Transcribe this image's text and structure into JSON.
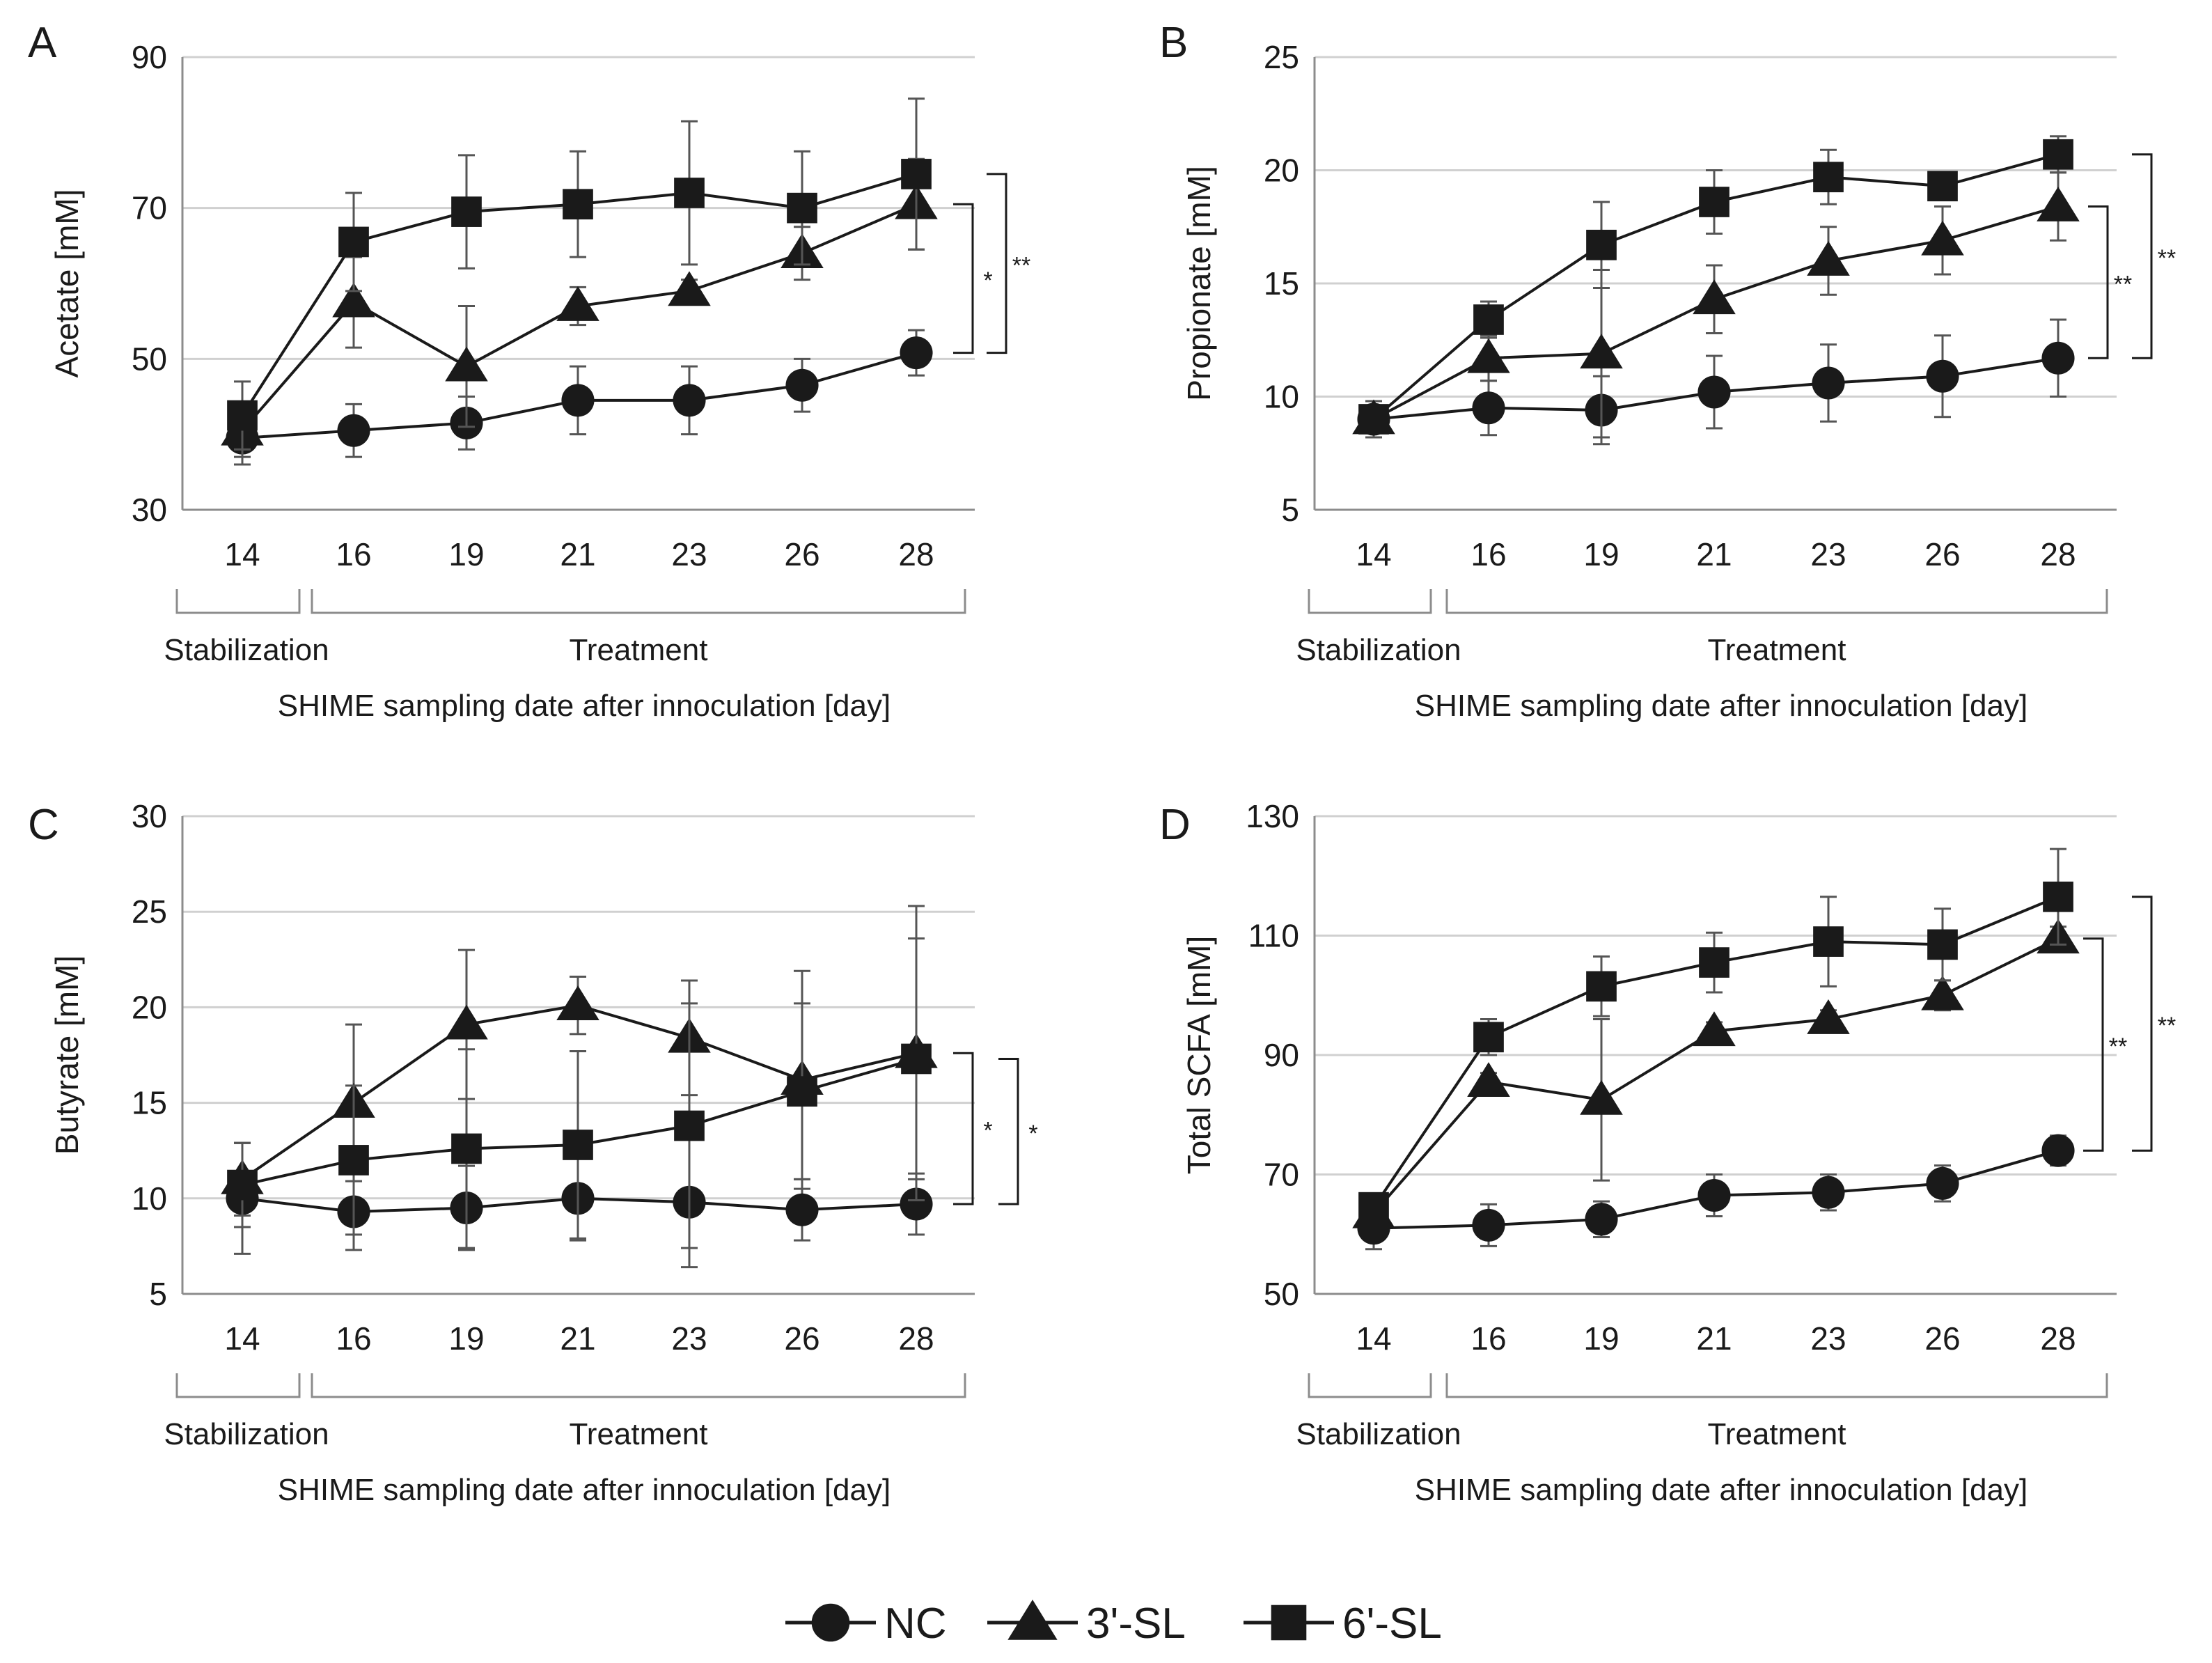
{
  "legend": {
    "colors": {
      "line": "#1a1a1a",
      "grid": "#d0d0d0",
      "axis": "#8c8c8c",
      "err": "#555555"
    },
    "items": [
      {
        "label": "NC",
        "marker": "circle"
      },
      {
        "label": "3'-SL",
        "marker": "triangle"
      },
      {
        "label": "6'-SL",
        "marker": "square"
      }
    ]
  },
  "chart_data": [
    {
      "panel": "A",
      "type": "line",
      "ylabel": "Acetate [mM]",
      "xlabel": "SHIME sampling date after innoculation [day]",
      "groups": [
        {
          "label": "Stabilization",
          "span": [
            0,
            0
          ]
        },
        {
          "label": "Treatment",
          "span": [
            1,
            6
          ]
        }
      ],
      "categories": [
        "14",
        "16",
        "19",
        "21",
        "23",
        "26",
        "28"
      ],
      "ylim": [
        30,
        90
      ],
      "yticks": [
        30,
        50,
        70,
        90
      ],
      "grid": true,
      "series": [
        {
          "name": "NC",
          "marker": "circle",
          "values": [
            39.5,
            40.5,
            41.5,
            44.5,
            44.5,
            46.5,
            50.8
          ],
          "err": [
            3.5,
            3.5,
            3.5,
            4.5,
            4.5,
            3.5,
            3
          ]
        },
        {
          "name": "3'-SL",
          "marker": "triangle",
          "values": [
            40.5,
            57.5,
            49,
            57,
            59,
            64,
            70.5
          ],
          "err": [
            3.5,
            6,
            8,
            2.5,
            1.5,
            3.5,
            6
          ]
        },
        {
          "name": "6'-SL",
          "marker": "square",
          "values": [
            42.5,
            65.5,
            69.5,
            70.5,
            72,
            70,
            74.5
          ],
          "err": [
            4.5,
            6.5,
            7.5,
            7,
            9.5,
            7.5,
            10
          ]
        }
      ],
      "significance": [
        {
          "label": "*",
          "from": 50.8,
          "to": 70.5
        },
        {
          "label": "**",
          "from": 50.8,
          "to": 74.5
        }
      ]
    },
    {
      "panel": "B",
      "type": "line",
      "ylabel": "Propionate [mM]",
      "xlabel": "SHIME sampling date after innoculation [day]",
      "groups": [
        {
          "label": "Stabilization",
          "span": [
            0,
            0
          ]
        },
        {
          "label": "Treatment",
          "span": [
            1,
            6
          ]
        }
      ],
      "categories": [
        "14",
        "16",
        "19",
        "21",
        "23",
        "26",
        "28"
      ],
      "ylim": [
        5,
        25
      ],
      "yticks": [
        5,
        10,
        15,
        20,
        25
      ],
      "grid": true,
      "series": [
        {
          "name": "NC",
          "marker": "circle",
          "values": [
            9,
            9.5,
            9.4,
            10.2,
            10.6,
            10.9,
            11.7
          ],
          "err": [
            0.8,
            1.2,
            1.5,
            1.6,
            1.7,
            1.8,
            1.7
          ]
        },
        {
          "name": "3'-SL",
          "marker": "triangle",
          "values": [
            9,
            11.7,
            11.9,
            14.3,
            16,
            16.9,
            18.4
          ],
          "err": [
            0.5,
            1,
            3.7,
            1.5,
            1.5,
            1.5,
            1.5
          ]
        },
        {
          "name": "6'-SL",
          "marker": "square",
          "values": [
            9,
            13.4,
            16.7,
            18.6,
            19.7,
            19.3,
            20.7
          ],
          "err": [
            0.5,
            0.8,
            1.9,
            1.4,
            1.2,
            0.6,
            0.8
          ]
        }
      ],
      "significance": [
        {
          "label": "**",
          "from": 11.7,
          "to": 18.4
        },
        {
          "label": "**",
          "from": 11.7,
          "to": 20.7
        }
      ]
    },
    {
      "panel": "C",
      "type": "line",
      "ylabel": "Butyrate [mM]",
      "xlabel": "SHIME sampling date after innoculation [day]",
      "groups": [
        {
          "label": "Stabilization",
          "span": [
            0,
            0
          ]
        },
        {
          "label": "Treatment",
          "span": [
            1,
            6
          ]
        }
      ],
      "categories": [
        "14",
        "16",
        "19",
        "21",
        "23",
        "26",
        "28"
      ],
      "ylim": [
        5,
        30
      ],
      "yticks": [
        5,
        10,
        15,
        20,
        25,
        30
      ],
      "grid": true,
      "series": [
        {
          "name": "NC",
          "marker": "circle",
          "values": [
            10,
            9.3,
            9.5,
            10,
            9.8,
            9.4,
            9.7
          ],
          "err": [
            2.9,
            2,
            2.2,
            2.2,
            3.4,
            1.6,
            1.6
          ]
        },
        {
          "name": "3'-SL",
          "marker": "triangle",
          "values": [
            11,
            15,
            19.1,
            20.1,
            18.4,
            16.2,
            17.6
          ],
          "err": [
            1.9,
            4.1,
            3.9,
            1.5,
            3,
            5.7,
            7.7
          ]
        },
        {
          "name": "6'-SL",
          "marker": "square",
          "values": [
            10.7,
            12,
            12.6,
            12.8,
            13.8,
            15.6,
            17.3
          ],
          "err": [
            2.2,
            3.9,
            5.2,
            4.9,
            6.4,
            4.6,
            6.3
          ]
        }
      ],
      "significance": [
        {
          "label": "*",
          "from": 9.7,
          "to": 17.6
        },
        {
          "label": "*",
          "from": 9.7,
          "to": 17.3
        }
      ]
    },
    {
      "panel": "D",
      "type": "line",
      "ylabel": "Total SCFA [mM]",
      "xlabel": "SHIME sampling date after innoculation [day]",
      "groups": [
        {
          "label": "Stabilization",
          "span": [
            0,
            0
          ]
        },
        {
          "label": "Treatment",
          "span": [
            1,
            6
          ]
        }
      ],
      "categories": [
        "14",
        "16",
        "19",
        "21",
        "23",
        "26",
        "28"
      ],
      "ylim": [
        50,
        130
      ],
      "yticks": [
        50,
        70,
        90,
        110,
        130
      ],
      "grid": true,
      "series": [
        {
          "name": "NC",
          "marker": "circle",
          "values": [
            61,
            61.5,
            62.5,
            66.5,
            67,
            68.5,
            74
          ],
          "err": [
            3.5,
            3.5,
            3,
            3.5,
            3,
            3,
            2.5
          ]
        },
        {
          "name": "3'-SL",
          "marker": "triangle",
          "values": [
            63.5,
            85.5,
            82.5,
            94,
            96,
            100,
            109.5
          ],
          "err": [
            2,
            1.5,
            13.5,
            1.5,
            1.5,
            2.5,
            2
          ]
        },
        {
          "name": "6'-SL",
          "marker": "square",
          "values": [
            64.5,
            93,
            101.5,
            105.5,
            109,
            108.5,
            116.5
          ],
          "err": [
            2,
            3,
            5,
            5,
            7.5,
            6,
            8
          ]
        }
      ],
      "significance": [
        {
          "label": "**",
          "from": 74,
          "to": 109.5
        },
        {
          "label": "**",
          "from": 74,
          "to": 116.5
        }
      ]
    }
  ]
}
